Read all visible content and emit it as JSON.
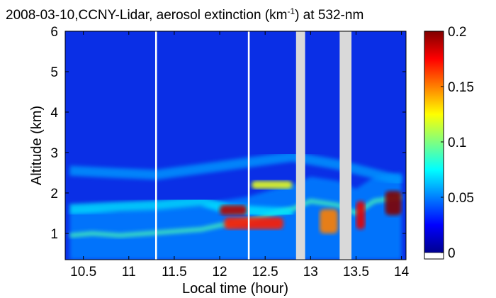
{
  "chart_data": {
    "type": "heatmap",
    "title_parts": {
      "before": "2008-03-10,CCNY-Lidar, aerosol extinction (km",
      "superscript": "-1",
      "after": ") at 532-nm"
    },
    "xlabel": "Local time (hour)",
    "ylabel": "Altitude (km)",
    "xlim": [
      10.3,
      14.05
    ],
    "ylim": [
      0.35,
      6.0
    ],
    "x_ticks": [
      10.5,
      11,
      11.5,
      12,
      12.5,
      13,
      13.5,
      14
    ],
    "x_tick_labels": [
      "10.5",
      "11",
      "11.5",
      "12",
      "12.5",
      "13",
      "13.5",
      "14"
    ],
    "y_ticks": [
      1,
      2,
      3,
      4,
      5,
      6
    ],
    "y_tick_labels": [
      "1",
      "2",
      "3",
      "4",
      "5",
      "6"
    ],
    "colorbar": {
      "colormap": "jet",
      "range": [
        0,
        0.2
      ],
      "ticks": [
        0,
        0.05,
        0.1,
        0.15,
        0.2
      ],
      "tick_labels": [
        "0",
        "0.05",
        "0.1",
        "0.15",
        "0.2"
      ]
    },
    "data_gaps_hours": [
      [
        11.29,
        11.31
      ],
      [
        12.31,
        12.33
      ],
      [
        12.84,
        12.94
      ],
      [
        13.32,
        13.45
      ]
    ],
    "layers": [
      {
        "name": "boundary-layer-top",
        "description": "altitude (km) of the aerosol layer top at each time",
        "x": [
          10.35,
          10.6,
          10.9,
          11.2,
          11.5,
          11.8,
          12.0,
          12.3,
          12.6,
          12.8,
          13.0,
          13.3,
          13.5,
          13.7,
          14.0
        ],
        "y": [
          0.95,
          1.0,
          0.95,
          1.0,
          1.05,
          1.1,
          1.2,
          1.3,
          1.5,
          1.6,
          1.8,
          1.7,
          1.5,
          1.8,
          1.9
        ]
      },
      {
        "name": "elevated-layer-1",
        "description": "elevated aerosol layer center (km)",
        "x": [
          10.35,
          10.8,
          11.3,
          11.8,
          12.1,
          12.4,
          12.8
        ],
        "y": [
          1.6,
          1.65,
          1.7,
          1.8,
          1.6,
          1.55,
          1.5
        ]
      },
      {
        "name": "elevated-layer-2",
        "description": "upper residual layer center (km)",
        "x": [
          10.35,
          10.8,
          11.3,
          11.8,
          12.3,
          12.8,
          13.3,
          14.0
        ],
        "y": [
          2.55,
          2.5,
          2.45,
          2.6,
          2.75,
          2.9,
          2.7,
          2.3
        ]
      }
    ],
    "high_extinction_regions": [
      {
        "x_range": [
          12.0,
          12.3
        ],
        "y_range": [
          1.45,
          1.7
        ],
        "value": 0.19
      },
      {
        "x_range": [
          12.05,
          12.7
        ],
        "y_range": [
          1.1,
          1.4
        ],
        "value": 0.17
      },
      {
        "x_range": [
          12.35,
          12.8
        ],
        "y_range": [
          2.1,
          2.3
        ],
        "value": 0.12
      },
      {
        "x_range": [
          13.5,
          13.6
        ],
        "y_range": [
          1.1,
          1.8
        ],
        "value": 0.18
      },
      {
        "x_range": [
          13.82,
          14.0
        ],
        "y_range": [
          1.45,
          2.05
        ],
        "value": 0.2
      },
      {
        "x_range": [
          13.1,
          13.3
        ],
        "y_range": [
          1.0,
          1.6
        ],
        "value": 0.15
      }
    ]
  }
}
